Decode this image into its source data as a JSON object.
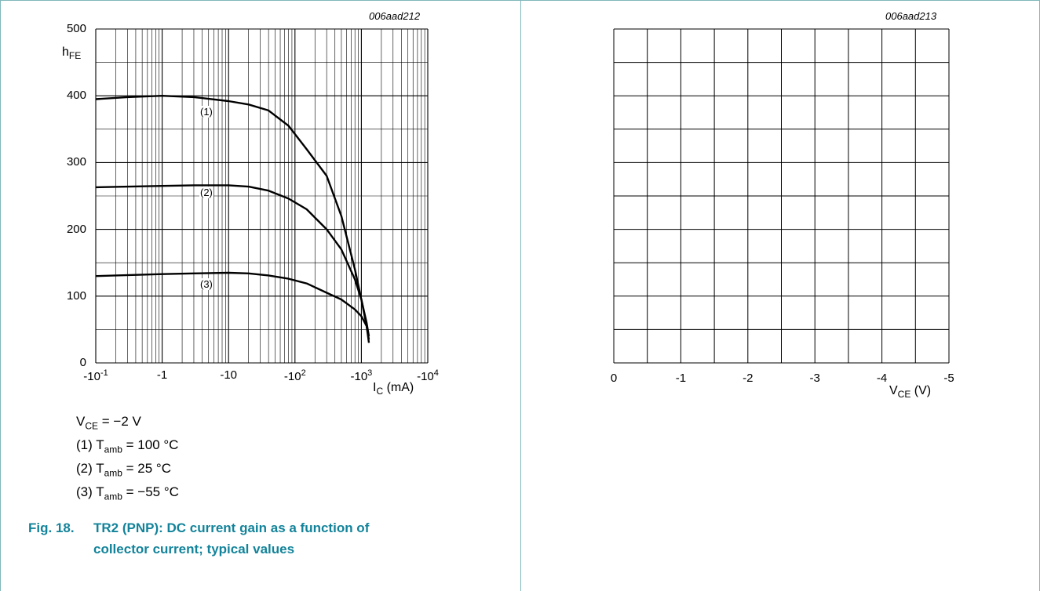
{
  "figure_left": {
    "code": "006aad212",
    "y_ticks": [
      "500",
      "400",
      "300",
      "200",
      "100",
      "0"
    ],
    "y_label_main": "h",
    "y_label_sub": "FE",
    "x_ticks": [
      {
        "base": "-10",
        "exp": "-1"
      },
      {
        "base": "-1",
        "exp": ""
      },
      {
        "base": "-10",
        "exp": ""
      },
      {
        "base": "-10",
        "exp": "2"
      },
      {
        "base": "-10",
        "exp": "3"
      },
      {
        "base": "-10",
        "exp": "4"
      }
    ],
    "x_label_main": "I",
    "x_label_sub": "C",
    "x_label_unit": " (mA)",
    "curve_labels": [
      "(1)",
      "(2)",
      "(3)"
    ],
    "conditions": [
      {
        "pre": "V",
        "sub": "CE",
        "post": " = −2 V"
      },
      {
        "pre": "(1) T",
        "sub": "amb",
        "post": " = 100 °C"
      },
      {
        "pre": "(2) T",
        "sub": "amb",
        "post": " = 25 °C"
      },
      {
        "pre": "(3) T",
        "sub": "amb",
        "post": " = −55 °C"
      }
    ],
    "caption_num": "Fig. 18.",
    "caption_line1": "TR2 (PNP): DC current gain as a function of",
    "caption_line2": "collector current; typical values",
    "colors": {
      "curve": "#000000",
      "grid": "#000000",
      "border": "#7fb7b9",
      "caption": "#12839a"
    }
  },
  "figure_right": {
    "code": "006aad213",
    "x_ticks": [
      "0",
      "-1",
      "-2",
      "-3",
      "-4",
      "-5"
    ],
    "x_label_main": "V",
    "x_label_sub": "CE",
    "x_label_unit": " (V)"
  },
  "chart_data": [
    {
      "type": "line",
      "x_scale": "log",
      "xlim": [
        -0.1,
        -10000
      ],
      "ylim": [
        0,
        500
      ],
      "grid": true,
      "series": [
        {
          "name": "(1)",
          "x": [
            -0.1,
            -0.3,
            -1,
            -3,
            -10,
            -20,
            -40,
            -80,
            -150,
            -300,
            -500,
            -800,
            -1000,
            -1200,
            -1300
          ],
          "y": [
            395,
            398,
            400,
            398,
            392,
            387,
            378,
            355,
            320,
            280,
            220,
            140,
            95,
            55,
            30
          ]
        },
        {
          "name": "(2)",
          "x": [
            -0.1,
            -1,
            -3,
            -10,
            -20,
            -40,
            -80,
            -150,
            -300,
            -500,
            -800,
            -1000,
            -1200,
            -1300
          ],
          "y": [
            263,
            265,
            266,
            266,
            264,
            258,
            246,
            230,
            200,
            170,
            125,
            95,
            60,
            40
          ]
        },
        {
          "name": "(3)",
          "x": [
            -0.1,
            -1,
            -3,
            -10,
            -20,
            -40,
            -80,
            -150,
            -300,
            -500,
            -800,
            -1000,
            -1200,
            -1300
          ],
          "y": [
            130,
            133,
            134,
            135,
            134,
            131,
            126,
            119,
            105,
            95,
            80,
            70,
            55,
            35
          ]
        }
      ]
    },
    {
      "type": "line",
      "xlim": [
        0,
        -5
      ],
      "ylim": [
        0,
        10
      ],
      "grid": true,
      "series": []
    }
  ]
}
